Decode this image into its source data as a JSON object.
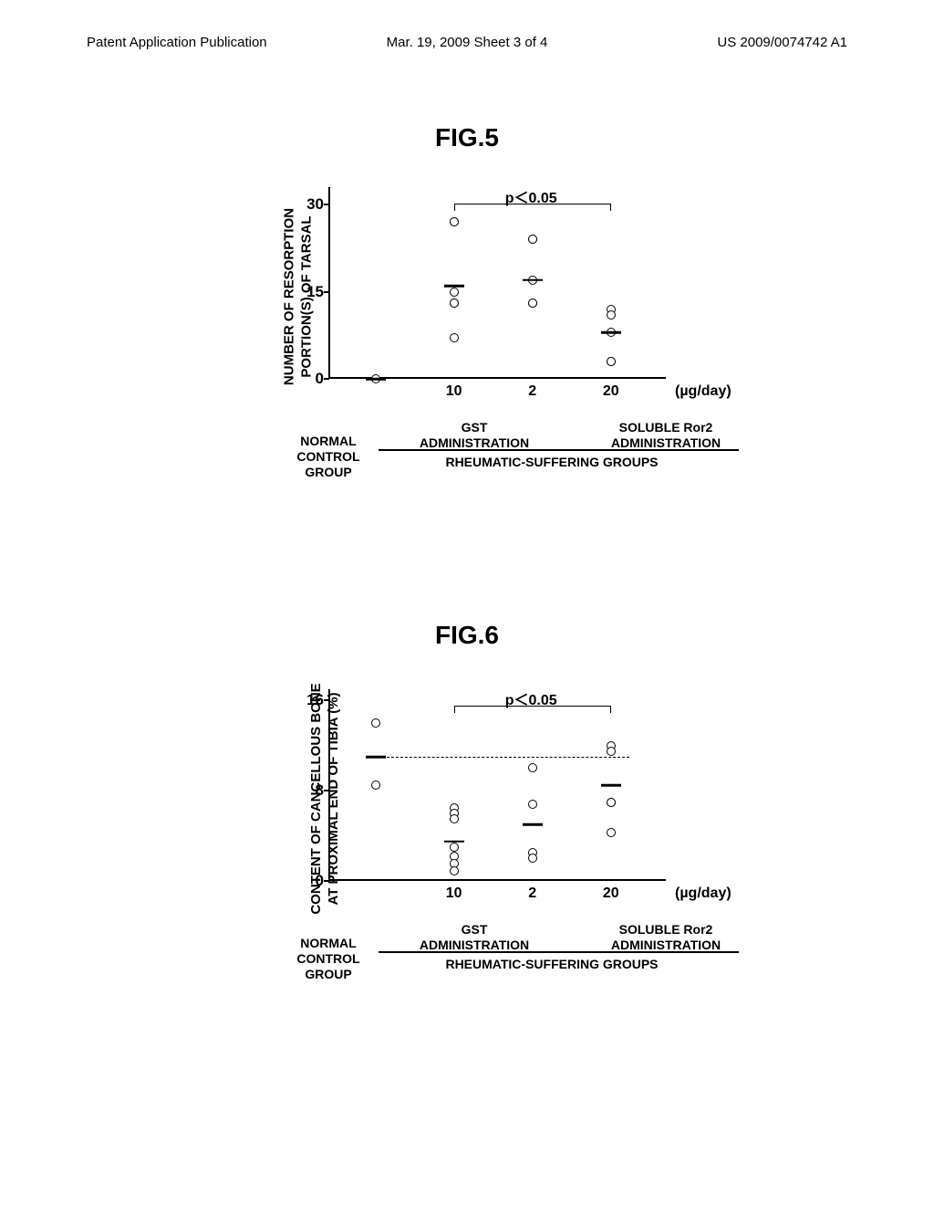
{
  "header": {
    "left": "Patent Application Publication",
    "center": "Mar. 19, 2009  Sheet 3 of 4",
    "right": "US 2009/0074742 A1"
  },
  "fig5": {
    "title": "FIG.5",
    "type": "scatter",
    "ylabel": "NUMBER OF RESORPTION\nPORTION(S) OF TARSAL",
    "yticks": [
      0,
      15,
      30
    ],
    "ylim": [
      0,
      33
    ],
    "xcategories": [
      "",
      "10",
      "2",
      "20"
    ],
    "xunit": "(µg/day)",
    "pvalue": "p＜0.05",
    "pbracket_from": 1,
    "pbracket_to": 3,
    "background_color": "#ffffff",
    "series": [
      {
        "x": 0,
        "points": [
          0
        ],
        "median": 0
      },
      {
        "x": 1,
        "points": [
          27,
          27,
          15,
          13,
          13,
          7
        ],
        "median": 16
      },
      {
        "x": 2,
        "points": [
          24,
          24,
          17,
          13,
          13
        ],
        "median": 17
      },
      {
        "x": 3,
        "points": [
          12,
          11,
          8,
          3,
          3
        ],
        "median": 8
      }
    ],
    "marker_style": "open-circle",
    "marker_color": "#000000",
    "marker_fill": "#ffffff",
    "marker_size": 10,
    "median_width": 22,
    "label_fontsize": 15
  },
  "fig6": {
    "title": "FIG.6",
    "type": "scatter",
    "ylabel": "CONTENT OF CANCELLOUS BONE\nAT PROXIMAL END OF TIBIA (%)",
    "yticks": [
      0,
      8,
      16
    ],
    "ylim": [
      0,
      17
    ],
    "xcategories": [
      "",
      "10",
      "2",
      "20"
    ],
    "xunit": "(µg/day)",
    "pvalue": "p＜0.05",
    "pbracket_from": 1,
    "pbracket_to": 3,
    "reference_line": 11,
    "background_color": "#ffffff",
    "series": [
      {
        "x": 0,
        "points": [
          14,
          8.5
        ],
        "median": 11
      },
      {
        "x": 1,
        "points": [
          6.5,
          6,
          5.5,
          3,
          2.2,
          1.5,
          0.9
        ],
        "median": 3.5
      },
      {
        "x": 2,
        "points": [
          10,
          6.8,
          2.5,
          2.0
        ],
        "median": 5
      },
      {
        "x": 3,
        "points": [
          12,
          11.5,
          7,
          7,
          4.3
        ],
        "median": 8.5
      }
    ],
    "marker_style": "open-circle",
    "marker_color": "#000000",
    "marker_fill": "#ffffff",
    "marker_size": 10,
    "median_width": 22,
    "label_fontsize": 15
  },
  "group_labels": {
    "normal": "NORMAL\nCONTROL\nGROUP",
    "gst": "GST\nADMINISTRATION",
    "ror2": "SOLUBLE Ror2\nADMINISTRATION",
    "rheumatic": "RHEUMATIC-SUFFERING GROUPS"
  }
}
